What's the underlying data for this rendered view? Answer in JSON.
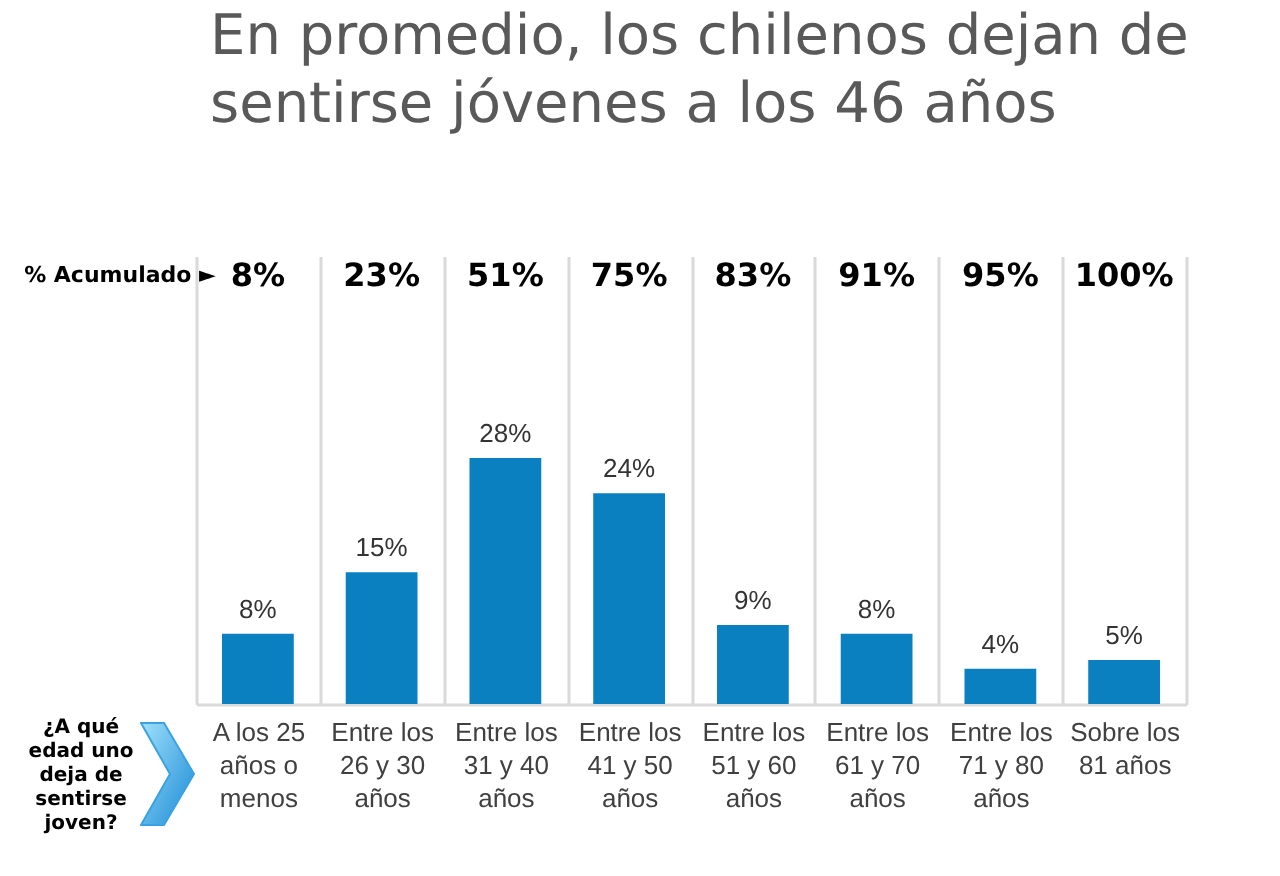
{
  "chart_data": {
    "type": "bar",
    "title": "En promedio, los chilenos dejan de sentirse jóvenes a los 46 años",
    "xlabel": "¿A qué edad uno deja de sentirse joven?",
    "categories": [
      "A los 25 años o menos",
      "Entre los 26 y 30 años",
      "Entre los 31 y 40 años",
      "Entre los 41 y 50 años",
      "Entre los 51 y 60 años",
      "Entre los 61 y 70 años",
      "Entre los 71 y 80 años",
      "Sobre los 81 años"
    ],
    "values": [
      8,
      15,
      28,
      24,
      9,
      8,
      4,
      5
    ],
    "value_labels": [
      "8%",
      "15%",
      "28%",
      "24%",
      "9%",
      "8%",
      "4%",
      "5%"
    ],
    "color": "#0a80c0",
    "annotations": [
      "% Acumulado ►",
      "8%",
      "23%",
      "51%",
      "75%",
      "83%",
      "91%",
      "95%",
      "100%"
    ],
    "grid": "x",
    "tick_labels": "x"
  }
}
